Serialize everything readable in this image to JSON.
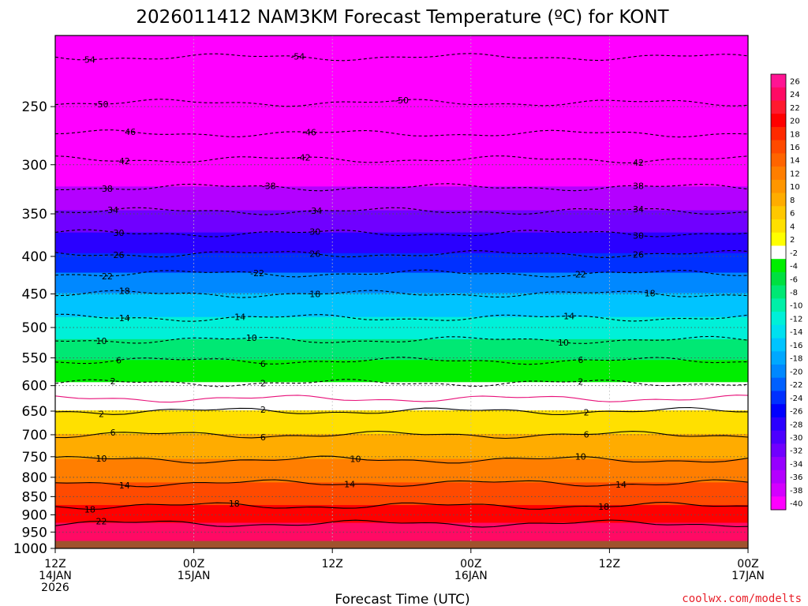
{
  "chart_data": {
    "type": "heatmap",
    "title": "2026011412 NAM3KM Forecast Temperature (ºC) for KONT",
    "xlabel": "Forecast Time (UTC)",
    "ylabel": "",
    "credit": "coolwx.com/modelts",
    "y_scale": "log",
    "ylim": [
      1000,
      200
    ],
    "yticks": [
      250,
      300,
      350,
      400,
      450,
      500,
      550,
      600,
      650,
      700,
      750,
      800,
      850,
      900,
      950,
      1000
    ],
    "xticks": [
      {
        "line1": "12Z",
        "line2": "14JAN",
        "line3": "2026"
      },
      {
        "line1": "00Z",
        "line2": "15JAN",
        "line3": ""
      },
      {
        "line1": "12Z",
        "line2": "",
        "line3": ""
      },
      {
        "line1": "00Z",
        "line2": "16JAN",
        "line3": ""
      },
      {
        "line1": "12Z",
        "line2": "",
        "line3": ""
      },
      {
        "line1": "00Z",
        "line2": "17JAN",
        "line3": ""
      }
    ],
    "x_hours": [
      0,
      12,
      24,
      36,
      48,
      60
    ],
    "ground_pressure": 977,
    "ground_color": "#a0522d",
    "colorbar": {
      "levels": [
        26,
        24,
        22,
        20,
        18,
        16,
        14,
        12,
        10,
        8,
        6,
        4,
        2,
        -2,
        -4,
        -6,
        -8,
        -10,
        -12,
        -14,
        -16,
        -18,
        -20,
        -22,
        -24,
        -26,
        -28,
        -30,
        -32,
        -34,
        -36,
        -38,
        -40
      ],
      "colors": [
        "#ff1493",
        "#ff0a64",
        "#ff1a2e",
        "#ff0000",
        "#ff2a00",
        "#ff4a00",
        "#ff6400",
        "#ff7e00",
        "#ff9600",
        "#ffac00",
        "#ffc800",
        "#ffe000",
        "#ffff00",
        "#ffffff",
        "#00ee00",
        "#00e040",
        "#00e874",
        "#00f0a8",
        "#00f0d8",
        "#00e0f0",
        "#00c4ff",
        "#00a8ff",
        "#0088ff",
        "#0060ff",
        "#0030ff",
        "#0000ff",
        "#2a00ff",
        "#4c00ff",
        "#7000ff",
        "#9600ff",
        "#b400ff",
        "#d400ff",
        "#ff00ff"
      ]
    },
    "isotherms": [
      {
        "value": -54,
        "p": 214,
        "labels": [
          {
            "h": 3,
            "t": "54"
          },
          {
            "h": 21,
            "t": "-54"
          }
        ]
      },
      {
        "value": -50,
        "p": 247,
        "labels": [
          {
            "h": 4,
            "t": "-50"
          },
          {
            "h": 30,
            "t": "-50"
          }
        ]
      },
      {
        "value": -46,
        "p": 272,
        "labels": [
          {
            "h": 6.5,
            "t": "46"
          },
          {
            "h": 22,
            "t": "-46"
          }
        ]
      },
      {
        "value": -42,
        "p": 295,
        "labels": [
          {
            "h": 6,
            "t": "42"
          },
          {
            "h": 21.5,
            "t": "-42"
          },
          {
            "h": 50.5,
            "t": "42"
          }
        ]
      },
      {
        "value": -38,
        "p": 322,
        "labels": [
          {
            "h": 4.5,
            "t": "38"
          },
          {
            "h": 18.5,
            "t": "-38"
          },
          {
            "h": 50.5,
            "t": "38"
          }
        ]
      },
      {
        "value": -34,
        "p": 347,
        "labels": [
          {
            "h": 5,
            "t": "34"
          },
          {
            "h": 22.5,
            "t": "-34"
          },
          {
            "h": 50.5,
            "t": "34"
          }
        ]
      },
      {
        "value": -30,
        "p": 372,
        "labels": [
          {
            "h": 5.5,
            "t": "30"
          },
          {
            "h": 22.5,
            "t": "30"
          },
          {
            "h": 50.5,
            "t": "30"
          }
        ]
      },
      {
        "value": -26,
        "p": 397,
        "labels": [
          {
            "h": 5.5,
            "t": "26"
          },
          {
            "h": 22.5,
            "t": "26"
          },
          {
            "h": 50.5,
            "t": "26"
          }
        ]
      },
      {
        "value": -22,
        "p": 422,
        "labels": [
          {
            "h": 4.5,
            "t": "22"
          },
          {
            "h": 17.5,
            "t": "-22"
          },
          {
            "h": 45.5,
            "t": "22"
          }
        ]
      },
      {
        "value": -18,
        "p": 450,
        "labels": [
          {
            "h": 6,
            "t": "18"
          },
          {
            "h": 22.5,
            "t": "18"
          },
          {
            "h": 51.5,
            "t": "18"
          }
        ]
      },
      {
        "value": -14,
        "p": 485,
        "labels": [
          {
            "h": 6,
            "t": "14"
          },
          {
            "h": 16,
            "t": "14"
          },
          {
            "h": 44.5,
            "t": "14"
          }
        ]
      },
      {
        "value": -10,
        "p": 520,
        "labels": [
          {
            "h": 4,
            "t": "10"
          },
          {
            "h": 17,
            "t": "10"
          },
          {
            "h": 44,
            "t": "10"
          }
        ]
      },
      {
        "value": -6,
        "p": 555,
        "labels": [
          {
            "h": 5.5,
            "t": "6"
          },
          {
            "h": 18,
            "t": "6"
          },
          {
            "h": 45.5,
            "t": "6"
          }
        ]
      },
      {
        "value": -2,
        "p": 595,
        "labels": [
          {
            "h": 5,
            "t": "2"
          },
          {
            "h": 18,
            "t": "2"
          },
          {
            "h": 45.5,
            "t": "2"
          }
        ]
      },
      {
        "value": 0,
        "p": 625,
        "labels": []
      },
      {
        "value": 2,
        "p": 650,
        "labels": [
          {
            "h": 4,
            "t": "2"
          },
          {
            "h": 18,
            "t": "2"
          },
          {
            "h": 46,
            "t": "2"
          }
        ]
      },
      {
        "value": 6,
        "p": 700,
        "labels": [
          {
            "h": 5,
            "t": "6"
          },
          {
            "h": 18,
            "t": "6"
          },
          {
            "h": 46,
            "t": "6"
          }
        ]
      },
      {
        "value": 10,
        "p": 757,
        "labels": [
          {
            "h": 4,
            "t": "10"
          },
          {
            "h": 26,
            "t": "10"
          },
          {
            "h": 45.5,
            "t": "10"
          }
        ]
      },
      {
        "value": 14,
        "p": 815,
        "labels": [
          {
            "h": 6,
            "t": "14"
          },
          {
            "h": 25.5,
            "t": "14"
          },
          {
            "h": 49,
            "t": "14"
          }
        ]
      },
      {
        "value": 18,
        "p": 875,
        "labels": [
          {
            "h": 3,
            "t": "18"
          },
          {
            "h": 15.5,
            "t": "18"
          },
          {
            "h": 47.5,
            "t": "18"
          }
        ]
      },
      {
        "value": 22,
        "p": 925,
        "labels": [
          {
            "h": 4,
            "t": "22"
          }
        ]
      }
    ]
  }
}
